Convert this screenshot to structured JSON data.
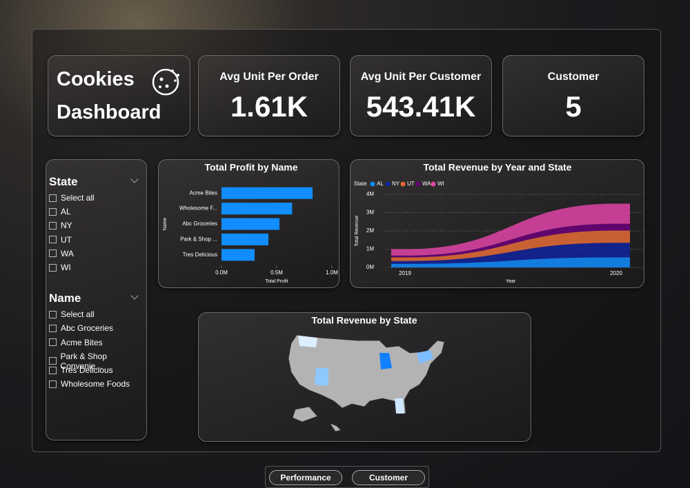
{
  "header": {
    "title_line1": "Cookies",
    "title_line2": "Dashboard"
  },
  "kpis": [
    {
      "label": "Avg Unit Per Order",
      "value": "1.61K"
    },
    {
      "label": "Avg Unit Per Customer",
      "value": "543.41K"
    },
    {
      "label": "Customer",
      "value": "5"
    }
  ],
  "slicers": [
    {
      "title": "State",
      "items": [
        "Select all",
        "AL",
        "NY",
        "UT",
        "WA",
        "WI"
      ]
    },
    {
      "title": "Name",
      "items": [
        "Select all",
        "Abc Groceries",
        "Acme Bites",
        "Park & Shop Convenie...",
        "Tres Delicious",
        "Wholesome Foods"
      ]
    }
  ],
  "chart_data": [
    {
      "type": "bar",
      "orientation": "horizontal",
      "title": "Total Profit by Name",
      "x_label": "Total Profit",
      "y_label": "Name",
      "categories": [
        "Acme Bites",
        "Wholesome F...",
        "Abc Groceries",
        "Park & Shop ...",
        "Tres Delicious"
      ],
      "values": [
        825000,
        640000,
        525000,
        425000,
        300000
      ],
      "color": "#118dff",
      "xlim": [
        0,
        1000000
      ],
      "xticks": [
        {
          "value": 0,
          "label": "0.0M"
        },
        {
          "value": 500000,
          "label": "0.5M"
        },
        {
          "value": 1000000,
          "label": "1.0M"
        }
      ]
    },
    {
      "type": "stacked-area",
      "title": "Total Revenue by Year and State",
      "x_label": "Year",
      "y_label": "Total Revenue",
      "legend_title": "State",
      "categories": [
        "2019",
        "2020"
      ],
      "series": [
        {
          "name": "AL",
          "color": "#118dff",
          "values": [
            200000,
            550000
          ]
        },
        {
          "name": "NY",
          "color": "#12239e",
          "values": [
            150000,
            800000
          ]
        },
        {
          "name": "UT",
          "color": "#e66c37",
          "values": [
            200000,
            670000
          ]
        },
        {
          "name": "WA",
          "color": "#6b007b",
          "values": [
            100000,
            370000
          ]
        },
        {
          "name": "WI",
          "color": "#e044a7",
          "values": [
            350000,
            1100000
          ]
        }
      ],
      "ylim": [
        0,
        4000000
      ],
      "yticks": [
        {
          "value": 0,
          "label": "0M"
        },
        {
          "value": 1000000,
          "label": "1M"
        },
        {
          "value": 2000000,
          "label": "2M"
        },
        {
          "value": 3000000,
          "label": "3M"
        },
        {
          "value": 4000000,
          "label": "4M"
        }
      ],
      "grid": true
    }
  ],
  "map": {
    "title": "Total Revenue by State"
  },
  "nav": [
    "Performance",
    "Customer"
  ]
}
